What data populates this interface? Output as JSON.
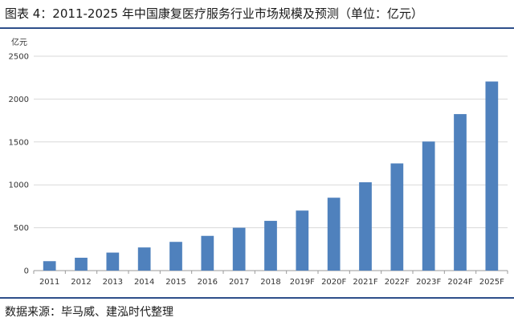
{
  "figure": {
    "title": "图表 4：2011-2025 年中国康复医疗服务行业市场规模及预测（单位：亿元）",
    "source": "数据来源：毕马威、建泓时代整理"
  },
  "chart_data": {
    "type": "bar",
    "title": "",
    "xlabel": "",
    "ylabel": "亿元",
    "ylim": [
      0,
      2500
    ],
    "yticks": [
      0,
      500,
      1000,
      1500,
      2000,
      2500
    ],
    "grid": true,
    "bar_color": "#4f81bd",
    "categories": [
      "2011",
      "2012",
      "2013",
      "2014",
      "2015",
      "2016",
      "2017",
      "2018",
      "2019F",
      "2020F",
      "2021F",
      "2022F",
      "2023F",
      "2024F",
      "2025F"
    ],
    "values": [
      110,
      150,
      210,
      270,
      335,
      405,
      500,
      580,
      700,
      850,
      1030,
      1250,
      1505,
      1825,
      2205
    ]
  }
}
